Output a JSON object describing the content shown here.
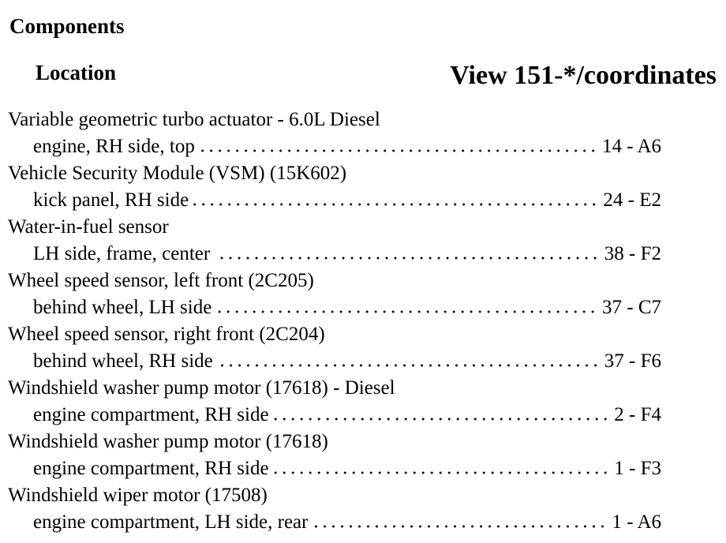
{
  "header": {
    "title": "Components",
    "location_heading": "Location",
    "view_heading": "View 151-*/coordinates"
  },
  "entries": [
    {
      "name": "Variable geometric turbo actuator - 6.0L Diesel",
      "location": "engine, RH side, top",
      "ref": "14 - A6"
    },
    {
      "name": "Vehicle Security Module (VSM) (15K602)",
      "location": "kick panel, RH side",
      "ref": "24 - E2"
    },
    {
      "name": "Water-in-fuel sensor",
      "location": "LH side, frame, center",
      "ref": "38 - F2"
    },
    {
      "name": "Wheel speed sensor, left front (2C205)",
      "location": "behind wheel, LH side",
      "ref": "37 - C7"
    },
    {
      "name": "Wheel speed sensor, right front (2C204)",
      "location": "behind wheel, RH side",
      "ref": "37 - F6"
    },
    {
      "name": "Windshield washer pump motor (17618) - Diesel",
      "location": "engine compartment, RH side",
      "ref": "2 - F4"
    },
    {
      "name": "Windshield washer pump motor (17618)",
      "location": "engine compartment, RH side",
      "ref": "1 - F3"
    },
    {
      "name": "Windshield wiper motor (17508)",
      "location": "engine compartment, LH side, rear",
      "ref": "1 - A6"
    }
  ]
}
